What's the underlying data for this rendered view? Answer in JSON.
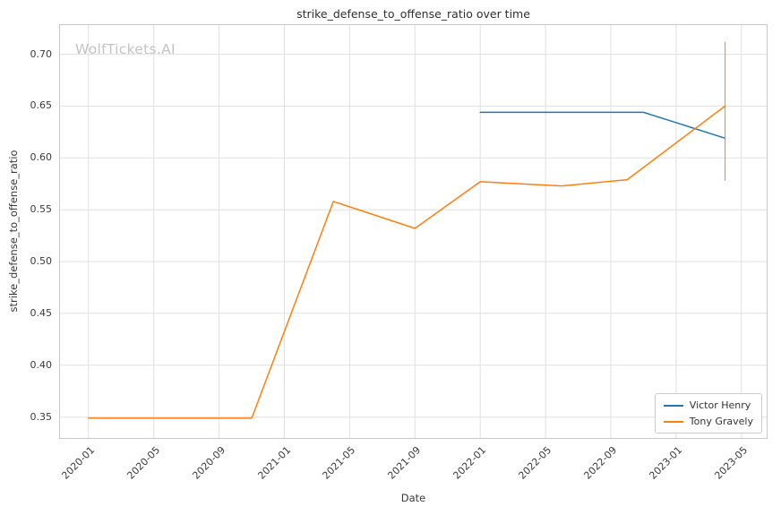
{
  "watermark": "WolfTickets.AI",
  "chart_data": {
    "type": "line",
    "title": "strike_defense_to_offense_ratio over time",
    "xlabel": "Date",
    "ylabel": "strike_defense_to_offense_ratio",
    "grid": true,
    "legend_position": "lower right",
    "x_tick_labels": [
      "2020-01",
      "2020-05",
      "2020-09",
      "2021-01",
      "2021-05",
      "2021-09",
      "2022-01",
      "2022-05",
      "2022-09",
      "2023-01",
      "2023-05"
    ],
    "y_ticks": [
      0.35,
      0.4,
      0.45,
      0.5,
      0.55,
      0.6,
      0.65,
      0.7
    ],
    "xlim_months_from_2020_01": [
      -1.8,
      41.6
    ],
    "ylim": [
      0.329,
      0.729
    ],
    "series": [
      {
        "name": "Victor Henry",
        "color": "#1f77b4",
        "points": [
          {
            "x": "2022-01",
            "y": 0.644
          },
          {
            "x": "2022-11",
            "y": 0.644
          },
          {
            "x": "2023-04",
            "y": 0.619
          }
        ]
      },
      {
        "name": "Tony Gravely",
        "color": "#ff7f0e",
        "points": [
          {
            "x": "2020-01",
            "y": 0.349
          },
          {
            "x": "2020-11",
            "y": 0.349
          },
          {
            "x": "2021-04",
            "y": 0.558
          },
          {
            "x": "2021-09",
            "y": 0.532
          },
          {
            "x": "2022-01",
            "y": 0.577
          },
          {
            "x": "2022-06",
            "y": 0.573
          },
          {
            "x": "2022-10",
            "y": 0.579
          },
          {
            "x": "2023-04",
            "y": 0.65
          }
        ],
        "error_bar": {
          "x": "2023-04",
          "y_low": 0.578,
          "y_high": 0.712
        }
      }
    ]
  }
}
